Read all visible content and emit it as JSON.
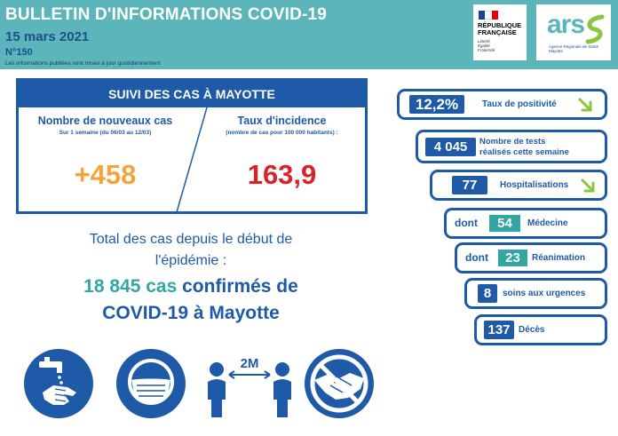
{
  "header": {
    "title": "BULLETIN D'INFORMATIONS COVID-19",
    "date": "15 mars 2021",
    "number": "N°150",
    "note": "Les informations publiées sont mises à jour quotidiennement",
    "rf_logo_l1": "RÉPUBLIQUE",
    "rf_logo_l2": "FRANÇAISE",
    "rf_motto_1": "Liberté",
    "rf_motto_2": "Égalité",
    "rf_motto_3": "Fraternité",
    "ars_word": "ars",
    "ars_sub": "Agence Régionale de Santé Mayotte"
  },
  "suivi": {
    "title": "SUIVI DES CAS À MAYOTTE",
    "new_cases_title": "Nombre de nouveaux cas",
    "new_cases_sub": "Sur 1 semaine (du 06/03 au 12/03)",
    "new_cases_value": "+458",
    "incidence_title": "Taux d'incidence",
    "incidence_sub": "(nombre de cas pour 100 000 habitants) :",
    "incidence_value": "163,9"
  },
  "total": {
    "line1": "Total des cas depuis le début de",
    "line2": "l'épidémie :",
    "count": "18 845 cas",
    "confirmed": "confirmés de",
    "line4": "COVID-19 à Mayotte"
  },
  "stats": {
    "positivity_value": "12,2%",
    "positivity_label": "Taux de positivité",
    "tests_value": "4 045",
    "tests_label_1": "Nombre de tests",
    "tests_label_2": "réalisés cette semaine",
    "hosp_value": "77",
    "hosp_label": "Hospitalisations",
    "med_dont": "dont",
    "med_value": "54",
    "med_label": "Médecine",
    "rea_dont": "dont",
    "rea_value": "23",
    "rea_label": "Réanimation",
    "urg_value": "8",
    "urg_label": "soins aux urgences",
    "deces_value": "137",
    "deces_label": "Décès"
  },
  "icons": {
    "distance_label": "2M",
    "names": [
      "hand-washing-icon",
      "face-mask-icon",
      "social-distance-icon",
      "no-handshake-icon"
    ]
  },
  "colors": {
    "header_teal": "#5bb5ba",
    "navy": "#1e5aa8",
    "orange": "#f5a43b",
    "red": "#d8232a",
    "teal_accent": "#33a6a3",
    "arrow_green": "#8cc63f"
  }
}
